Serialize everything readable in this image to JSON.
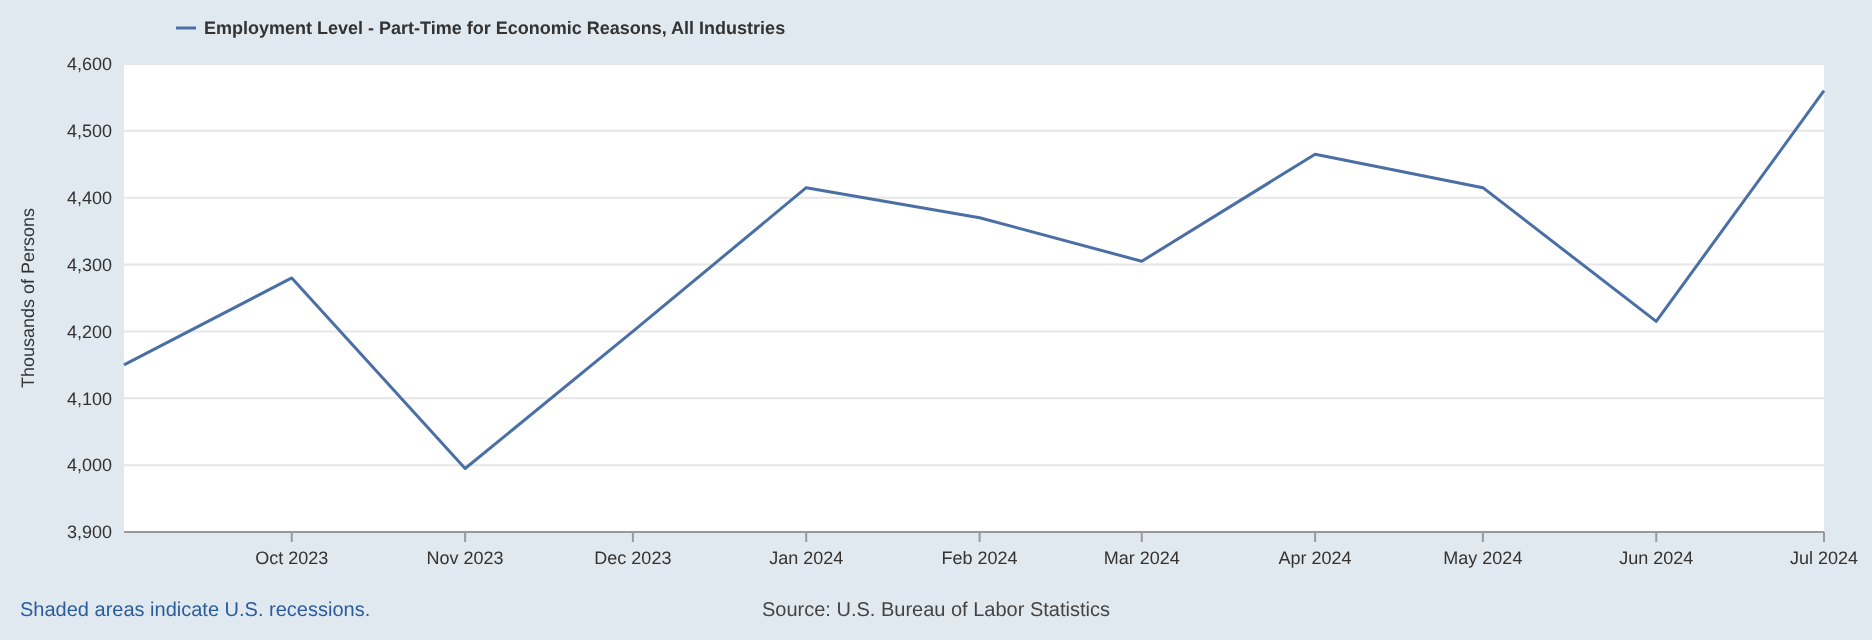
{
  "chart_data": {
    "type": "line",
    "ylabel": "Thousands of Persons",
    "x": [
      "2023-09",
      "2023-10",
      "2023-11",
      "2023-12",
      "2024-01",
      "2024-02",
      "2024-03",
      "2024-04",
      "2024-05",
      "2024-06",
      "2024-07"
    ],
    "series": [
      {
        "name": "Employment Level - Part-Time for Economic Reasons, All Industries",
        "color": "#4a6fa5",
        "values": [
          4150,
          4280,
          3995,
          4200,
          4415,
          4370,
          4305,
          4465,
          4415,
          4215,
          4560
        ]
      }
    ],
    "xlim": [
      "2023-09",
      "2024-07"
    ],
    "xticks": [
      {
        "value": "2023-10",
        "label": "Oct 2023"
      },
      {
        "value": "2023-11",
        "label": "Nov 2023"
      },
      {
        "value": "2023-12",
        "label": "Dec 2023"
      },
      {
        "value": "2024-01",
        "label": "Jan 2024"
      },
      {
        "value": "2024-02",
        "label": "Feb 2024"
      },
      {
        "value": "2024-03",
        "label": "Mar 2024"
      },
      {
        "value": "2024-04",
        "label": "Apr 2024"
      },
      {
        "value": "2024-05",
        "label": "May 2024"
      },
      {
        "value": "2024-06",
        "label": "Jun 2024"
      },
      {
        "value": "2024-07",
        "label": "Jul 2024"
      }
    ],
    "ylim": [
      3900,
      4600
    ],
    "yticks": [
      {
        "value": 3900,
        "label": "3,900"
      },
      {
        "value": 4000,
        "label": "4,000"
      },
      {
        "value": 4100,
        "label": "4,100"
      },
      {
        "value": 4200,
        "label": "4,200"
      },
      {
        "value": 4300,
        "label": "4,300"
      },
      {
        "value": 4400,
        "label": "4,400"
      },
      {
        "value": 4500,
        "label": "4,500"
      },
      {
        "value": 4600,
        "label": "4,600"
      }
    ],
    "grid": "y",
    "legend": "top left",
    "marker": "none",
    "line_style": "solid",
    "annotations": [
      "Shaded areas indicate U.S. recessions.",
      "Source: U.S. Bureau of Labor Statistics"
    ]
  }
}
